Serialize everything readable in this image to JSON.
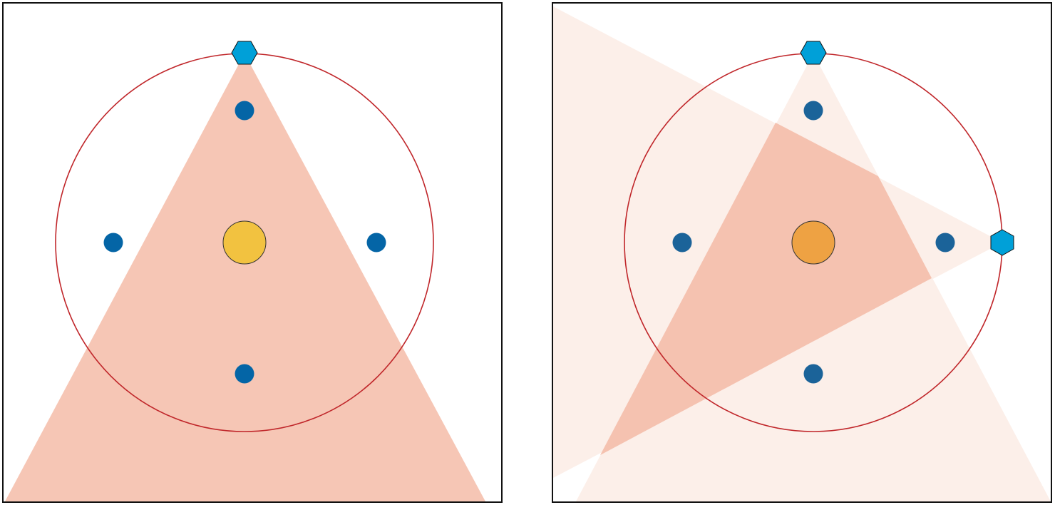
{
  "colors": {
    "background": "#ffffff",
    "frame": "#111111",
    "cone_fill": "#f6c6b5",
    "cone_fill_faint": "#fcefe9",
    "cone_overlap": "#f5c2b0",
    "circle_stroke": "#c0262a",
    "dot_blue_left": "#0465a6",
    "dot_blue_right": "#1b6399",
    "center_left": "#f2c240",
    "center_right": "#eea243",
    "center_stroke": "#333333",
    "hexagon_fill": "#00a0d8",
    "hexagon_stroke": "#111111"
  },
  "panels": [
    {
      "id": "left",
      "description_free": true,
      "icons": [
        "hexagon-source-icon"
      ],
      "source_count": 1,
      "blue_dot_count": 4
    },
    {
      "id": "right",
      "description_free": true,
      "icons": [
        "hexagon-source-icon",
        "hexagon-source-icon"
      ],
      "source_count": 2,
      "blue_dot_count": 4
    }
  ]
}
